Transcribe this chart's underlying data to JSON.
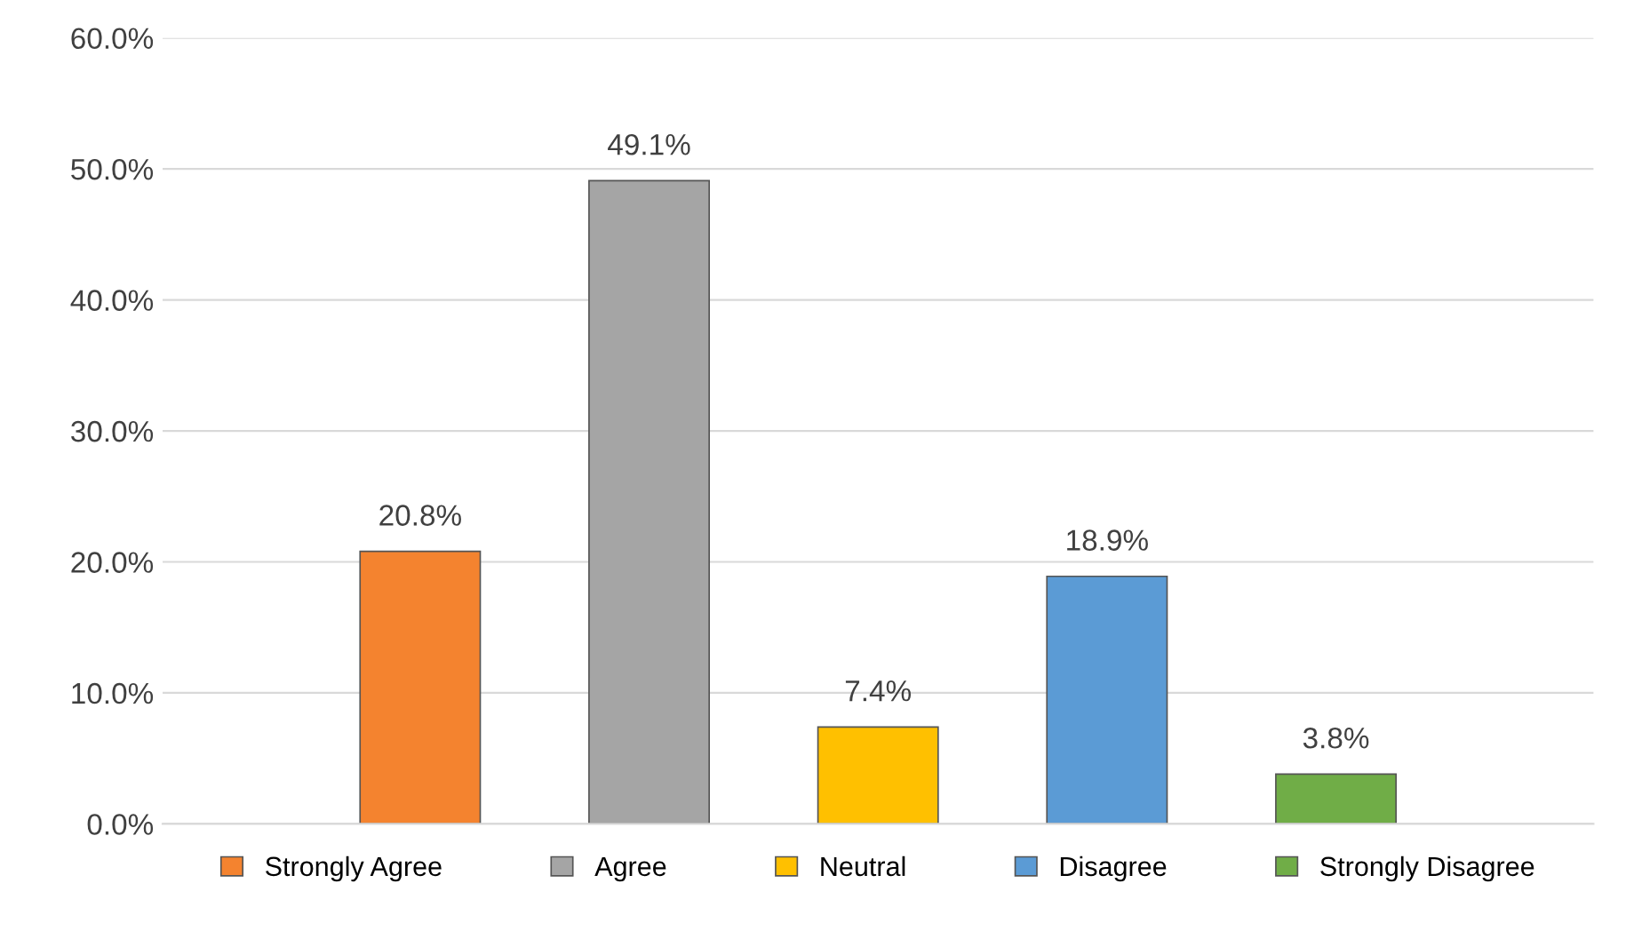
{
  "chart_data": {
    "type": "bar",
    "categories": [
      null
    ],
    "series": [
      {
        "name": "Strongly Agree",
        "color": "#f4832f",
        "values": [
          20.8
        ],
        "value_labels": [
          "20.8%"
        ]
      },
      {
        "name": "Agree",
        "color": "#a5a5a5",
        "values": [
          49.1
        ],
        "value_labels": [
          "49.1%"
        ]
      },
      {
        "name": "Neutral",
        "color": "#ffc000",
        "values": [
          7.4
        ],
        "value_labels": [
          "7.4%"
        ]
      },
      {
        "name": "Disagree",
        "color": "#5b9bd5",
        "values": [
          18.9
        ],
        "value_labels": [
          "18.9%"
        ]
      },
      {
        "name": "Strongly Disagree",
        "color": "#70ad47",
        "values": [
          3.8
        ],
        "value_labels": [
          "3.8%"
        ]
      }
    ],
    "ylim": [
      0,
      60
    ],
    "yticks": [
      {
        "value": 0,
        "label": "0.0%"
      },
      {
        "value": 10,
        "label": "10.0%"
      },
      {
        "value": 20,
        "label": "20.0%"
      },
      {
        "value": 30,
        "label": "30.0%"
      },
      {
        "value": 40,
        "label": "40.0%"
      },
      {
        "value": 50,
        "label": "50.0%"
      },
      {
        "value": 60,
        "label": "60.0%"
      }
    ],
    "grid": "y",
    "legend": "bottom"
  }
}
